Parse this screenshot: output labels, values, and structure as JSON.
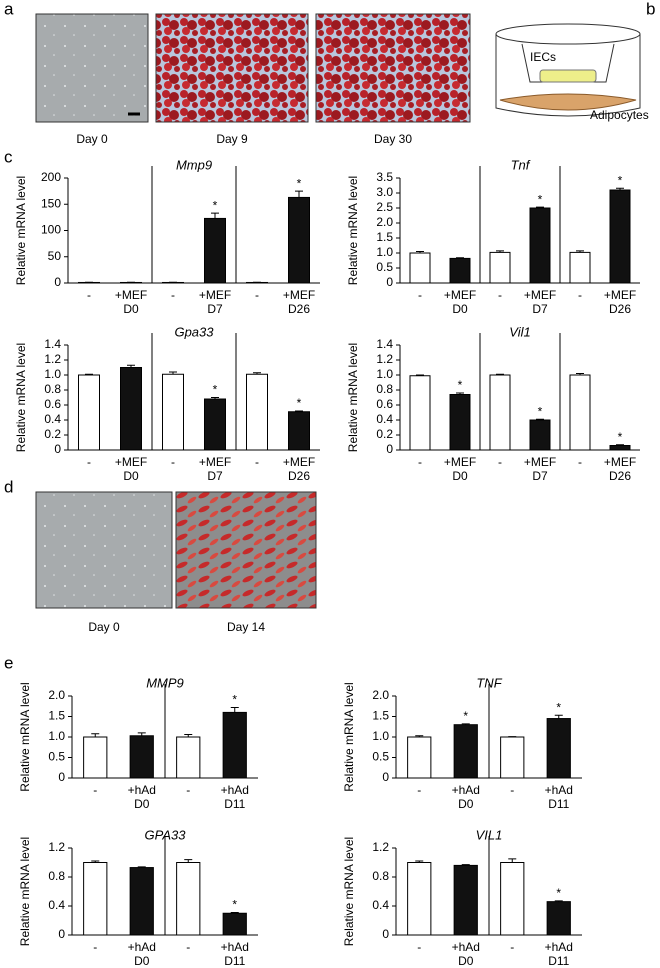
{
  "panel_labels": [
    "a",
    "b",
    "c",
    "d",
    "e"
  ],
  "images_a": [
    "Day 0",
    "Day 9",
    "Day 30"
  ],
  "images_d": [
    "Day 0",
    "Day 14"
  ],
  "diagram": {
    "top_label": "IECs",
    "bottom_label": "Adipocytes"
  },
  "star": "*",
  "chart_data": [
    {
      "type": "bar",
      "title": "Mmp9",
      "y_label": "Relative mRNA level",
      "categories": [
        "-",
        "+MEF",
        "-",
        "+MEF",
        "-",
        "+MEF"
      ],
      "groups": [
        "D0",
        "D7",
        "D26"
      ],
      "values": [
        1,
        1,
        1,
        123,
        1,
        163
      ],
      "errors": [
        0.5,
        0.5,
        0.5,
        10,
        0.5,
        12
      ],
      "significant": [
        false,
        false,
        false,
        true,
        false,
        true
      ],
      "bar_colors": [
        "#ffffff",
        "#111111",
        "#ffffff",
        "#111111",
        "#ffffff",
        "#111111"
      ],
      "ylim": [
        0,
        200
      ],
      "yticks": [
        0,
        50,
        100,
        150,
        200
      ]
    },
    {
      "type": "bar",
      "title": "Tnf",
      "y_label": "Relative mRNA level",
      "categories": [
        "-",
        "+MEF",
        "-",
        "+MEF",
        "-",
        "+MEF"
      ],
      "groups": [
        "D0",
        "D7",
        "D26"
      ],
      "values": [
        1.0,
        0.82,
        1.02,
        2.5,
        1.02,
        3.1
      ],
      "errors": [
        0.05,
        0.02,
        0.05,
        0.03,
        0.05,
        0.06
      ],
      "significant": [
        false,
        false,
        false,
        true,
        false,
        true
      ],
      "bar_colors": [
        "#ffffff",
        "#111111",
        "#ffffff",
        "#111111",
        "#ffffff",
        "#111111"
      ],
      "ylim": [
        0,
        3.5
      ],
      "yticks": [
        0,
        0.5,
        {
          "value": 1,
          "label": "1.0"
        },
        1.5,
        {
          "value": 2,
          "label": "2.0"
        },
        2.5,
        {
          "value": 3,
          "label": "3.0"
        },
        3.5
      ]
    },
    {
      "type": "bar",
      "title": "Gpa33",
      "y_label": "Relative mRNA level",
      "categories": [
        "-",
        "+MEF",
        "-",
        "+MEF",
        "-",
        "+MEF"
      ],
      "groups": [
        "D0",
        "D7",
        "D26"
      ],
      "values": [
        1.0,
        1.1,
        1.01,
        0.68,
        1.01,
        0.51
      ],
      "errors": [
        0.01,
        0.03,
        0.03,
        0.02,
        0.02,
        0.01
      ],
      "significant": [
        false,
        false,
        false,
        true,
        false,
        true
      ],
      "bar_colors": [
        "#ffffff",
        "#111111",
        "#ffffff",
        "#111111",
        "#ffffff",
        "#111111"
      ],
      "ylim": [
        0,
        1.4
      ],
      "yticks": [
        0,
        0.2,
        0.4,
        0.6,
        0.8,
        {
          "value": 1,
          "label": "1.0"
        },
        1.2,
        1.4
      ]
    },
    {
      "type": "bar",
      "title": "Vil1",
      "y_label": "Relative mRNA level",
      "categories": [
        "-",
        "+MEF",
        "-",
        "+MEF",
        "-",
        "+MEF"
      ],
      "groups": [
        "D0",
        "D7",
        "D26"
      ],
      "values": [
        0.99,
        0.74,
        1.0,
        0.4,
        1.0,
        0.06
      ],
      "errors": [
        0.01,
        0.02,
        0.01,
        0.01,
        0.02,
        0.01
      ],
      "significant": [
        false,
        true,
        false,
        true,
        false,
        true
      ],
      "bar_colors": [
        "#ffffff",
        "#111111",
        "#ffffff",
        "#111111",
        "#ffffff",
        "#111111"
      ],
      "ylim": [
        0,
        1.4
      ],
      "yticks": [
        0,
        0.2,
        0.4,
        0.6,
        0.8,
        {
          "value": 1,
          "label": "1.0"
        },
        1.2,
        1.4
      ]
    },
    {
      "type": "bar",
      "title": "MMP9",
      "y_label": "Relative mRNA level",
      "categories": [
        "-",
        "+hAd",
        "-",
        "+hAd"
      ],
      "groups": [
        "D0",
        "D11"
      ],
      "values": [
        1.0,
        1.03,
        1.0,
        1.6
      ],
      "errors": [
        0.08,
        0.07,
        0.06,
        0.12
      ],
      "significant": [
        false,
        false,
        false,
        true
      ],
      "bar_colors": [
        "#ffffff",
        "#111111",
        "#ffffff",
        "#111111"
      ],
      "ylim": [
        0,
        2
      ],
      "yticks": [
        0,
        0.5,
        {
          "value": 1,
          "label": "1.0"
        },
        1.5,
        {
          "value": 2,
          "label": "2.0"
        }
      ]
    },
    {
      "type": "bar",
      "title": "TNF",
      "y_label": "Relative mRNA level",
      "categories": [
        "-",
        "+hAd",
        "-",
        "+hAd"
      ],
      "groups": [
        "D0",
        "D11"
      ],
      "values": [
        1.0,
        1.3,
        1.0,
        1.45
      ],
      "errors": [
        0.03,
        0.02,
        0.01,
        0.08
      ],
      "significant": [
        false,
        true,
        false,
        true
      ],
      "bar_colors": [
        "#ffffff",
        "#111111",
        "#ffffff",
        "#111111"
      ],
      "ylim": [
        0,
        2
      ],
      "yticks": [
        0,
        0.5,
        {
          "value": 1,
          "label": "1.0"
        },
        1.5,
        {
          "value": 2,
          "label": "2.0"
        }
      ]
    },
    {
      "type": "bar",
      "title": "GPA33",
      "y_label": "Relative mRNA level",
      "categories": [
        "-",
        "+hAd",
        "-",
        "+hAd"
      ],
      "groups": [
        "D0",
        "D11"
      ],
      "values": [
        1.0,
        0.93,
        1.0,
        0.3
      ],
      "errors": [
        0.02,
        0.01,
        0.04,
        0.01
      ],
      "significant": [
        false,
        false,
        false,
        true
      ],
      "bar_colors": [
        "#ffffff",
        "#111111",
        "#ffffff",
        "#111111"
      ],
      "ylim": [
        0,
        1.2
      ],
      "yticks": [
        0,
        0.4,
        0.8,
        1.2
      ]
    },
    {
      "type": "bar",
      "title": "VIL1",
      "y_label": "Relative mRNA level",
      "categories": [
        "-",
        "+hAd",
        "-",
        "+hAd"
      ],
      "groups": [
        "D0",
        "D11"
      ],
      "values": [
        1.0,
        0.96,
        1.0,
        0.46
      ],
      "errors": [
        0.02,
        0.01,
        0.05,
        0.01
      ],
      "significant": [
        false,
        false,
        false,
        true
      ],
      "bar_colors": [
        "#ffffff",
        "#111111",
        "#ffffff",
        "#111111"
      ],
      "ylim": [
        0,
        1.2
      ],
      "yticks": [
        0,
        0.4,
        0.8,
        1.2
      ]
    }
  ]
}
